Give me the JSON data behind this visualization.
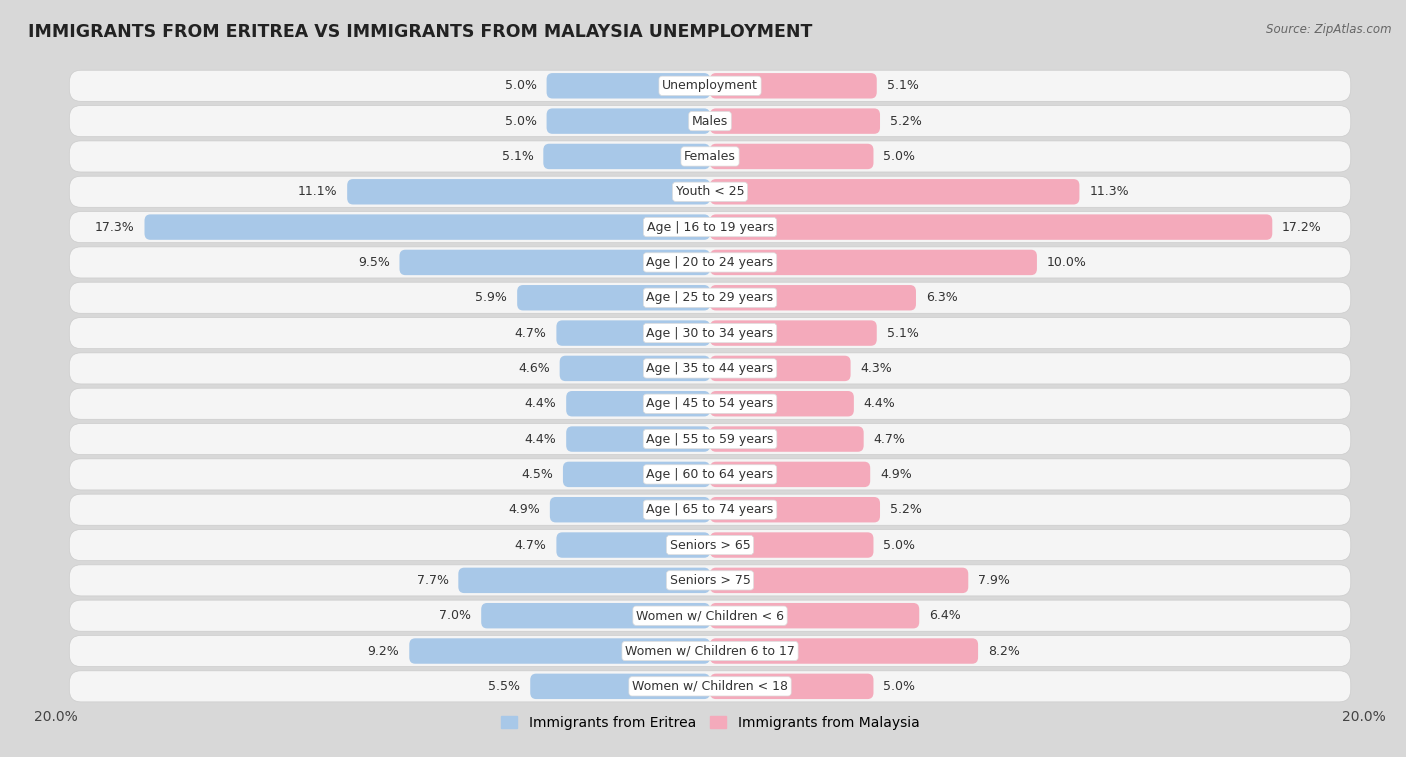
{
  "title": "IMMIGRANTS FROM ERITREA VS IMMIGRANTS FROM MALAYSIA UNEMPLOYMENT",
  "source": "Source: ZipAtlas.com",
  "categories": [
    "Unemployment",
    "Males",
    "Females",
    "Youth < 25",
    "Age | 16 to 19 years",
    "Age | 20 to 24 years",
    "Age | 25 to 29 years",
    "Age | 30 to 34 years",
    "Age | 35 to 44 years",
    "Age | 45 to 54 years",
    "Age | 55 to 59 years",
    "Age | 60 to 64 years",
    "Age | 65 to 74 years",
    "Seniors > 65",
    "Seniors > 75",
    "Women w/ Children < 6",
    "Women w/ Children 6 to 17",
    "Women w/ Children < 18"
  ],
  "eritrea_values": [
    5.0,
    5.0,
    5.1,
    11.1,
    17.3,
    9.5,
    5.9,
    4.7,
    4.6,
    4.4,
    4.4,
    4.5,
    4.9,
    4.7,
    7.7,
    7.0,
    9.2,
    5.5
  ],
  "malaysia_values": [
    5.1,
    5.2,
    5.0,
    11.3,
    17.2,
    10.0,
    6.3,
    5.1,
    4.3,
    4.4,
    4.7,
    4.9,
    5.2,
    5.0,
    7.9,
    6.4,
    8.2,
    5.0
  ],
  "eritrea_color": "#A8C8E8",
  "malaysia_color": "#F4AABB",
  "background_color": "#D8D8D8",
  "row_color": "#FFFFFF",
  "row_color_alt": "#F0F0F0",
  "max_value": 20.0,
  "label_fontsize": 9.0,
  "title_fontsize": 12.5,
  "bar_height": 0.72
}
